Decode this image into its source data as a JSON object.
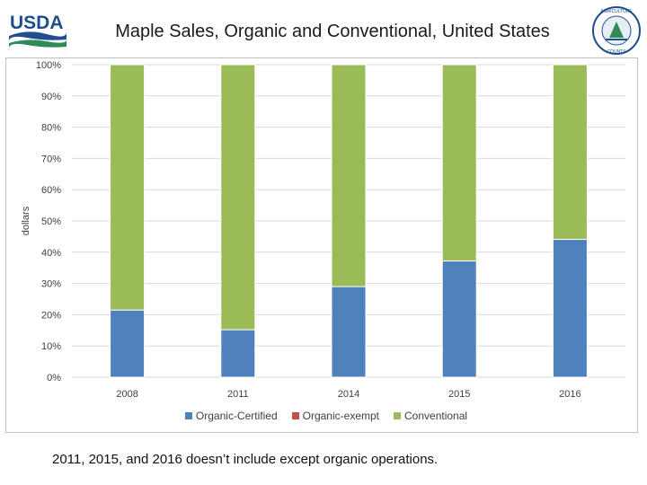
{
  "header": {
    "title": "Maple Sales, Organic and Conventional, United States",
    "usda_logo_text": "USDA",
    "seal_text": "AGRICULTURE COUNTS"
  },
  "colors": {
    "organic_certified": "#4f81bd",
    "organic_exempt": "#c0504d",
    "conventional": "#9bbb59",
    "grid": "#d9d9d9",
    "usda_blue": "#1f4e8c",
    "usda_green": "#2e8b57"
  },
  "chart_data": {
    "type": "bar",
    "stacked": true,
    "percent": true,
    "categories": [
      "2008",
      "2011",
      "2014",
      "2015",
      "2016"
    ],
    "series": [
      {
        "name": "Organic-Certified",
        "values": [
          21.5,
          15.2,
          29.0,
          37.2,
          44.1
        ]
      },
      {
        "name": "Organic-exempt",
        "values": [
          0,
          0,
          0,
          0,
          0
        ]
      },
      {
        "name": "Conventional",
        "values": [
          78.5,
          84.8,
          71.0,
          62.8,
          55.9
        ]
      }
    ],
    "ylabel": "dollars",
    "ylim": [
      0,
      100
    ],
    "yticks": [
      "0%",
      "10%",
      "20%",
      "30%",
      "40%",
      "50%",
      "60%",
      "70%",
      "80%",
      "90%",
      "100%"
    ],
    "grid": true,
    "legend_position": "bottom"
  },
  "footnote": "2011, 2015, and 2016  doesn’t include except organic operations."
}
